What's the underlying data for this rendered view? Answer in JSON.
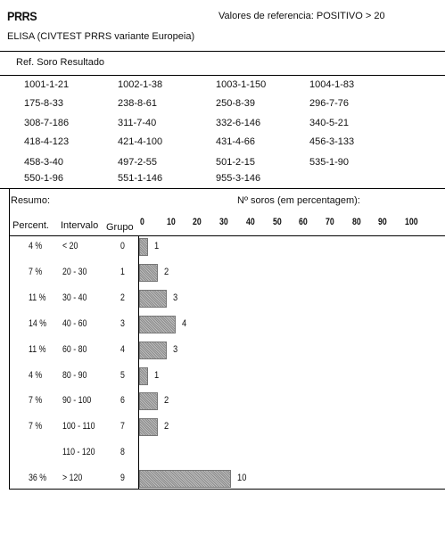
{
  "header": {
    "title": "PRRS",
    "reference": "Valores de referencia: POSITIVO > 20",
    "method": "ELISA (CIVTEST PRRS variante Europeia)"
  },
  "samples": {
    "header": "Ref. Soro Resultado",
    "rows": [
      [
        "1001-1-21",
        "1002-1-38",
        "1003-1-150",
        "1004-1-83"
      ],
      [
        "175-8-33",
        "238-8-61",
        "250-8-39",
        "296-7-76"
      ],
      [
        "308-7-186",
        "311-7-40",
        "332-6-146",
        "340-5-21"
      ],
      [
        "418-4-123",
        "421-4-100",
        "431-4-66",
        "456-3-133"
      ],
      [
        "458-3-40",
        "497-2-55",
        "501-2-15",
        "535-1-90"
      ],
      [
        "550-1-96",
        "551-1-146",
        "955-3-146",
        ""
      ]
    ]
  },
  "summary": {
    "title": "Resumo:",
    "chart_title": "Nº soros (em percentagem):",
    "columns": {
      "percent": "Percent.",
      "interval": "Intervalo",
      "group": "Grupo"
    },
    "scale_labels": [
      "0",
      "10",
      "20",
      "30",
      "40",
      "50",
      "60",
      "70",
      "80",
      "90",
      "100"
    ]
  },
  "chart_data": {
    "type": "bar",
    "orientation": "horizontal",
    "title": "Nº soros (em percentagem):",
    "xlim": [
      0,
      100
    ],
    "scale_ticks": [
      0,
      10,
      20,
      30,
      40,
      50,
      60,
      70,
      80,
      90,
      100
    ],
    "rows": [
      {
        "percent": "4 %",
        "interval": "< 20",
        "group": "0",
        "count": 1
      },
      {
        "percent": "7 %",
        "interval": "20 - 30",
        "group": "1",
        "count": 2
      },
      {
        "percent": "11 %",
        "interval": "30 - 40",
        "group": "2",
        "count": 3
      },
      {
        "percent": "14 %",
        "interval": "40 - 60",
        "group": "3",
        "count": 4
      },
      {
        "percent": "11 %",
        "interval": "60 - 80",
        "group": "4",
        "count": 3
      },
      {
        "percent": "4 %",
        "interval": "80 - 90",
        "group": "5",
        "count": 1
      },
      {
        "percent": "7 %",
        "interval": "90 - 100",
        "group": "6",
        "count": 2
      },
      {
        "percent": "7 %",
        "interval": "100 - 110",
        "group": "7",
        "count": 2
      },
      {
        "percent": "",
        "interval": "110 - 120",
        "group": "8",
        "count": null
      },
      {
        "percent": "36 %",
        "interval": "> 120",
        "group": "9",
        "count": 10
      }
    ]
  }
}
